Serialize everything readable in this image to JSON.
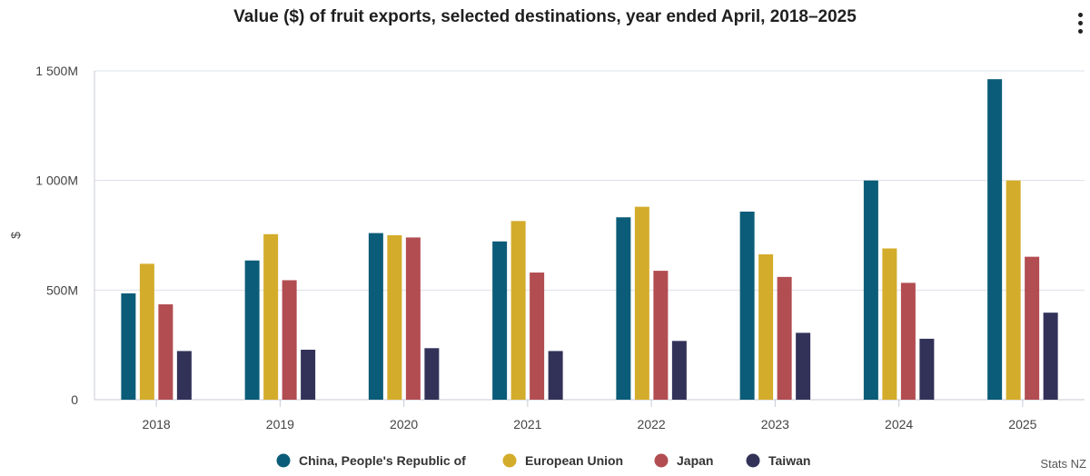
{
  "chart_data": {
    "type": "bar",
    "title": "Value ($) of fruit exports, selected destinations, year ended April, 2018–2025",
    "ylabel": "$",
    "xlabel": "",
    "ylim": [
      0,
      1500
    ],
    "yticks": [
      {
        "value": 0,
        "label": "0"
      },
      {
        "value": 500,
        "label": "500M"
      },
      {
        "value": 1000,
        "label": "1 000M"
      },
      {
        "value": 1500,
        "label": "1 500M"
      }
    ],
    "categories": [
      "2018",
      "2019",
      "2020",
      "2021",
      "2022",
      "2023",
      "2024",
      "2025"
    ],
    "series": [
      {
        "name": "China, People's Republic of",
        "color": "#0b5c78",
        "values": [
          485,
          635,
          760,
          722,
          832,
          858,
          1000,
          1462
        ]
      },
      {
        "name": "European Union",
        "color": "#d4ac2b",
        "values": [
          620,
          755,
          750,
          815,
          880,
          663,
          690,
          1000
        ]
      },
      {
        "name": "Japan",
        "color": "#b24d52",
        "values": [
          435,
          545,
          740,
          580,
          588,
          560,
          533,
          652
        ]
      },
      {
        "name": "Taiwan",
        "color": "#323259",
        "values": [
          222,
          228,
          235,
          222,
          268,
          305,
          278,
          397
        ]
      }
    ],
    "grid": true,
    "legend_position": "bottom",
    "credit": "Stats NZ"
  }
}
